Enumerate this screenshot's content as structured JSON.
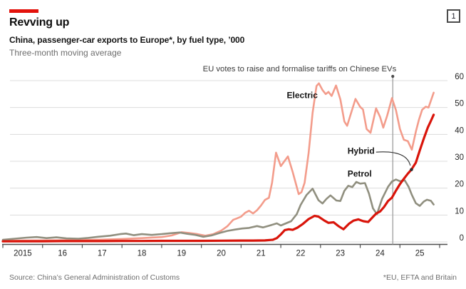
{
  "header": {
    "tag_color": "#e3120b",
    "title": "Revving up",
    "subtitle": "China, passenger-car exports to Europe*, by fuel type, ’000",
    "note": "Three-month moving average",
    "index_label": "1"
  },
  "footer": {
    "source": "Source: China’s General Administration of Customs",
    "footnote": "*EU, EFTA and Britain"
  },
  "chart_data": {
    "type": "line",
    "title": "China, passenger-car exports to Europe, by fuel type, '000",
    "subtitle": "Three-month moving average",
    "unit": "'000",
    "grid": true,
    "legend_position": "inline-labels",
    "x_axis": {
      "range": [
        2015,
        2026
      ],
      "ticks_years": [
        2015,
        2016,
        2017,
        2018,
        2019,
        2020,
        2021,
        2022,
        2023,
        2024,
        2025,
        2026
      ],
      "tick_labels": [
        "2015",
        "16",
        "17",
        "18",
        "19",
        "20",
        "21",
        "22",
        "23",
        "24",
        "25"
      ]
    },
    "y_axis": {
      "range": [
        0,
        60
      ],
      "ticks": [
        0,
        10,
        20,
        30,
        40,
        50,
        60
      ],
      "side": "right"
    },
    "annotation": {
      "text": "EU votes to raise and formalise tariffs on Chinese EVs",
      "x_year": 2024.82
    },
    "colors": {
      "grid": "#dcdcdc",
      "axis": "#4d4d4d",
      "tick_text": "#262626",
      "annotation_line": "#9e9e9e",
      "annotation_dot": "#4a4a4a",
      "annotation_text": "#3a3a3a",
      "label_text": "#141414",
      "callout": "#2f2f2f"
    },
    "series": [
      {
        "name": "Electric",
        "color": "#f39c8b",
        "width": 2.6,
        "label_anchor": {
          "year": 2022.93,
          "value": 54.6,
          "align": "end"
        },
        "points": [
          [
            2015.0,
            0.4
          ],
          [
            2015.5,
            0.5
          ],
          [
            2016.0,
            0.55
          ],
          [
            2016.5,
            0.6
          ],
          [
            2017.0,
            0.7
          ],
          [
            2017.5,
            0.85
          ],
          [
            2018.0,
            1.1
          ],
          [
            2018.5,
            1.4
          ],
          [
            2019.0,
            1.8
          ],
          [
            2019.25,
            2.4
          ],
          [
            2019.5,
            3.6
          ],
          [
            2019.7,
            3.3
          ],
          [
            2019.9,
            2.9
          ],
          [
            2020.1,
            2.3
          ],
          [
            2020.3,
            2.9
          ],
          [
            2020.5,
            4.2
          ],
          [
            2020.65,
            5.8
          ],
          [
            2020.8,
            8.2
          ],
          [
            2020.9,
            8.8
          ],
          [
            2021.0,
            9.4
          ],
          [
            2021.1,
            10.8
          ],
          [
            2021.2,
            11.6
          ],
          [
            2021.3,
            10.6
          ],
          [
            2021.4,
            11.8
          ],
          [
            2021.5,
            13.5
          ],
          [
            2021.6,
            15.6
          ],
          [
            2021.7,
            16.4
          ],
          [
            2021.78,
            22.0
          ],
          [
            2021.88,
            33.2
          ],
          [
            2022.0,
            28.2
          ],
          [
            2022.18,
            31.8
          ],
          [
            2022.3,
            26.0
          ],
          [
            2022.45,
            17.8
          ],
          [
            2022.52,
            18.5
          ],
          [
            2022.6,
            22.0
          ],
          [
            2022.7,
            33.0
          ],
          [
            2022.8,
            48.0
          ],
          [
            2022.9,
            58.0
          ],
          [
            2022.96,
            59.0
          ],
          [
            2023.05,
            56.5
          ],
          [
            2023.13,
            55.0
          ],
          [
            2023.2,
            55.8
          ],
          [
            2023.28,
            54.3
          ],
          [
            2023.39,
            58.2
          ],
          [
            2023.5,
            53.0
          ],
          [
            2023.6,
            44.8
          ],
          [
            2023.67,
            43.2
          ],
          [
            2023.76,
            47.5
          ],
          [
            2023.88,
            53.2
          ],
          [
            2024.0,
            50.2
          ],
          [
            2024.07,
            49.3
          ],
          [
            2024.16,
            42.0
          ],
          [
            2024.26,
            40.6
          ],
          [
            2024.4,
            49.7
          ],
          [
            2024.5,
            46.5
          ],
          [
            2024.58,
            42.5
          ],
          [
            2024.68,
            47.0
          ],
          [
            2024.8,
            53.5
          ],
          [
            2024.9,
            49.0
          ],
          [
            2025.0,
            42.0
          ],
          [
            2025.1,
            38.0
          ],
          [
            2025.2,
            37.5
          ],
          [
            2025.3,
            34.3
          ],
          [
            2025.4,
            41.0
          ],
          [
            2025.48,
            45.5
          ],
          [
            2025.56,
            49.2
          ],
          [
            2025.65,
            50.3
          ],
          [
            2025.72,
            50.0
          ],
          [
            2025.85,
            55.5
          ]
        ]
      },
      {
        "name": "Petrol",
        "color": "#908f7f",
        "width": 2.6,
        "label_anchor": {
          "year": 2023.68,
          "value": 25.4,
          "align": "start"
        },
        "points": [
          [
            2015.0,
            0.8
          ],
          [
            2015.3,
            1.2
          ],
          [
            2015.6,
            1.6
          ],
          [
            2015.85,
            1.8
          ],
          [
            2016.1,
            1.4
          ],
          [
            2016.35,
            1.7
          ],
          [
            2016.6,
            1.3
          ],
          [
            2016.9,
            1.2
          ],
          [
            2017.15,
            1.5
          ],
          [
            2017.4,
            1.9
          ],
          [
            2017.7,
            2.3
          ],
          [
            2017.95,
            2.9
          ],
          [
            2018.1,
            3.1
          ],
          [
            2018.3,
            2.5
          ],
          [
            2018.5,
            2.9
          ],
          [
            2018.75,
            2.6
          ],
          [
            2019.0,
            2.9
          ],
          [
            2019.2,
            3.2
          ],
          [
            2019.45,
            3.5
          ],
          [
            2019.65,
            3.0
          ],
          [
            2019.85,
            2.6
          ],
          [
            2020.05,
            1.9
          ],
          [
            2020.25,
            2.4
          ],
          [
            2020.45,
            3.3
          ],
          [
            2020.65,
            4.1
          ],
          [
            2020.85,
            4.6
          ],
          [
            2021.03,
            5.0
          ],
          [
            2021.2,
            5.2
          ],
          [
            2021.4,
            5.9
          ],
          [
            2021.55,
            5.4
          ],
          [
            2021.7,
            6.0
          ],
          [
            2021.9,
            6.9
          ],
          [
            2022.0,
            6.1
          ],
          [
            2022.13,
            6.9
          ],
          [
            2022.26,
            7.7
          ],
          [
            2022.4,
            10.3
          ],
          [
            2022.5,
            13.8
          ],
          [
            2022.65,
            17.5
          ],
          [
            2022.8,
            19.8
          ],
          [
            2022.95,
            15.5
          ],
          [
            2023.05,
            14.3
          ],
          [
            2023.15,
            16.0
          ],
          [
            2023.25,
            17.3
          ],
          [
            2023.4,
            15.4
          ],
          [
            2023.5,
            15.2
          ],
          [
            2023.6,
            19.0
          ],
          [
            2023.7,
            20.9
          ],
          [
            2023.8,
            20.4
          ],
          [
            2023.9,
            22.3
          ],
          [
            2024.0,
            21.7
          ],
          [
            2024.12,
            21.9
          ],
          [
            2024.22,
            18.0
          ],
          [
            2024.32,
            12.5
          ],
          [
            2024.42,
            10.3
          ],
          [
            2024.55,
            16.0
          ],
          [
            2024.7,
            20.5
          ],
          [
            2024.8,
            22.5
          ],
          [
            2024.9,
            23.2
          ],
          [
            2025.0,
            22.6
          ],
          [
            2025.12,
            22.9
          ],
          [
            2025.22,
            20.5
          ],
          [
            2025.3,
            17.5
          ],
          [
            2025.4,
            14.4
          ],
          [
            2025.5,
            13.4
          ],
          [
            2025.6,
            15.0
          ],
          [
            2025.68,
            15.7
          ],
          [
            2025.78,
            15.3
          ],
          [
            2025.85,
            13.9
          ]
        ]
      },
      {
        "name": "Hybrid",
        "color": "#d9140a",
        "width": 3.2,
        "label_anchor": {
          "year": 2023.68,
          "value": 33.8,
          "align": "start"
        },
        "callout": {
          "from_year": 2024.4,
          "from_value": 33.4,
          "ctrl_year": 2025.17,
          "ctrl_value": 34.2,
          "to_year": 2025.26,
          "to_value": 28.4,
          "dot_year": 2025.29,
          "dot_value": 26.9
        },
        "points": [
          [
            2015.0,
            0.2
          ],
          [
            2015.5,
            0.25
          ],
          [
            2016.0,
            0.25
          ],
          [
            2016.5,
            0.3
          ],
          [
            2017.0,
            0.3
          ],
          [
            2017.5,
            0.3
          ],
          [
            2018.0,
            0.35
          ],
          [
            2018.5,
            0.35
          ],
          [
            2019.0,
            0.4
          ],
          [
            2019.5,
            0.4
          ],
          [
            2020.0,
            0.4
          ],
          [
            2020.5,
            0.45
          ],
          [
            2021.0,
            0.5
          ],
          [
            2021.3,
            0.5
          ],
          [
            2021.6,
            0.55
          ],
          [
            2021.8,
            0.8
          ],
          [
            2021.9,
            1.4
          ],
          [
            2022.0,
            2.8
          ],
          [
            2022.1,
            4.4
          ],
          [
            2022.2,
            4.7
          ],
          [
            2022.3,
            4.5
          ],
          [
            2022.42,
            5.3
          ],
          [
            2022.55,
            6.6
          ],
          [
            2022.7,
            8.5
          ],
          [
            2022.85,
            9.7
          ],
          [
            2022.95,
            9.4
          ],
          [
            2023.1,
            7.9
          ],
          [
            2023.2,
            7.1
          ],
          [
            2023.33,
            7.3
          ],
          [
            2023.45,
            5.9
          ],
          [
            2023.58,
            4.7
          ],
          [
            2023.72,
            6.8
          ],
          [
            2023.83,
            7.9
          ],
          [
            2023.95,
            8.4
          ],
          [
            2024.08,
            7.7
          ],
          [
            2024.2,
            7.4
          ],
          [
            2024.3,
            9.0
          ],
          [
            2024.4,
            10.5
          ],
          [
            2024.5,
            11.3
          ],
          [
            2024.6,
            13.0
          ],
          [
            2024.7,
            15.2
          ],
          [
            2024.8,
            16.5
          ],
          [
            2024.9,
            19.1
          ],
          [
            2025.0,
            21.5
          ],
          [
            2025.1,
            23.5
          ],
          [
            2025.2,
            25.4
          ],
          [
            2025.29,
            26.9
          ],
          [
            2025.4,
            29.5
          ],
          [
            2025.5,
            34.0
          ],
          [
            2025.6,
            38.4
          ],
          [
            2025.7,
            42.5
          ],
          [
            2025.78,
            45.0
          ],
          [
            2025.85,
            47.3
          ]
        ]
      }
    ]
  }
}
